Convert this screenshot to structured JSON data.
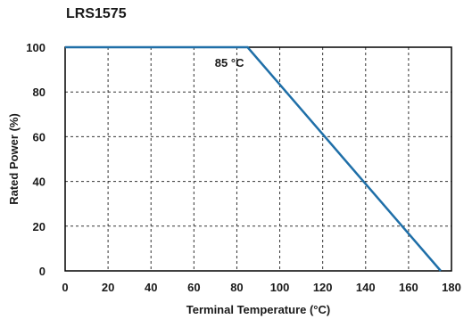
{
  "chart_data": {
    "type": "line",
    "title": "LRS1575",
    "xlabel": "Terminal Temperature (°C)",
    "ylabel": "Rated Power (%)",
    "xlim": [
      0,
      180
    ],
    "ylim": [
      0,
      100
    ],
    "x_ticks": [
      0,
      20,
      40,
      60,
      80,
      100,
      120,
      140,
      160,
      180
    ],
    "y_ticks": [
      0,
      20,
      40,
      60,
      80,
      100
    ],
    "x_tick_labels": [
      "0",
      "20",
      "40",
      "60",
      "80",
      "100",
      "120",
      "140",
      "160",
      "180"
    ],
    "y_tick_labels": [
      "0",
      "20",
      "40",
      "60",
      "80",
      "100"
    ],
    "grid": true,
    "grid_style": "dashed",
    "series": [
      {
        "color": "#1f6fa8",
        "points": [
          [
            0,
            100
          ],
          [
            85,
            100
          ],
          [
            175,
            0
          ]
        ]
      }
    ],
    "annotations": [
      {
        "text": "85 °C",
        "x": 85,
        "y": 100
      }
    ]
  }
}
